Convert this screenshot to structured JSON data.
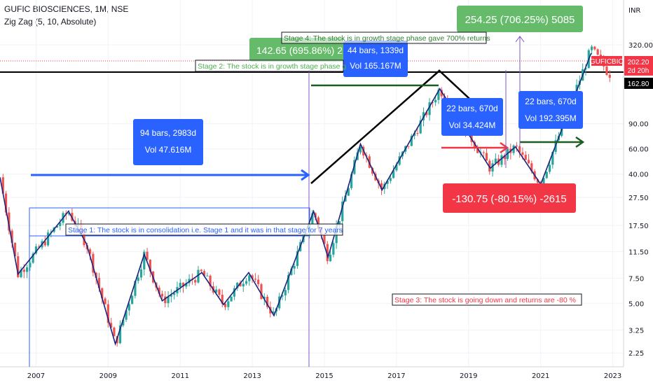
{
  "header": {
    "title": "GUFIC BIOSCIENCES, 1M, NSE",
    "indicator": "Zig Zag (5, 10, Absolute)",
    "currency": "INR"
  },
  "chart_data": {
    "type": "candlestick",
    "symbol": "GUFICBIO",
    "interval": "1M",
    "y_scale": "log",
    "ylim": [
      1.8,
      420
    ],
    "x_range": [
      2006.0,
      2023.3
    ],
    "y_ticks": [
      "320.00",
      "90.00",
      "60.00",
      "40.00",
      "27.50",
      "17.50",
      "11.50",
      "7.50",
      "5.00",
      "3.25",
      "2.25"
    ],
    "x_ticks": [
      "2007",
      "2009",
      "2011",
      "2013",
      "2015",
      "2017",
      "2019",
      "2021",
      "2023"
    ],
    "price_labels": [
      {
        "text": "GUFICBIO",
        "color": "#f23645"
      },
      {
        "text": "202.20",
        "color": "#f23645"
      },
      {
        "text": "2d 20h",
        "color": "#f23645"
      },
      {
        "text": "162.80",
        "color": "#000000"
      }
    ],
    "zigzag": [
      {
        "x": 2006.0,
        "y": 38
      },
      {
        "x": 2006.5,
        "y": 8
      },
      {
        "x": 2007.9,
        "y": 22
      },
      {
        "x": 2008.4,
        "y": 13
      },
      {
        "x": 2009.2,
        "y": 2.6
      },
      {
        "x": 2010.0,
        "y": 11
      },
      {
        "x": 2010.5,
        "y": 5.2
      },
      {
        "x": 2011.6,
        "y": 8.2
      },
      {
        "x": 2012.2,
        "y": 4.9
      },
      {
        "x": 2012.9,
        "y": 8.2
      },
      {
        "x": 2013.6,
        "y": 4.1
      },
      {
        "x": 2014.7,
        "y": 22
      },
      {
        "x": 2015.1,
        "y": 10.5
      },
      {
        "x": 2016.0,
        "y": 65
      },
      {
        "x": 2016.6,
        "y": 31
      },
      {
        "x": 2018.2,
        "y": 158
      },
      {
        "x": 2019.6,
        "y": 44
      },
      {
        "x": 2020.3,
        "y": 62
      },
      {
        "x": 2021.0,
        "y": 34
      },
      {
        "x": 2022.4,
        "y": 280
      }
    ],
    "candles": [
      {
        "x": 2006.0,
        "y": 38
      },
      {
        "x": 2006.5,
        "y": 8
      },
      {
        "x": 2007.9,
        "y": 22
      },
      {
        "x": 2008.4,
        "y": 13
      },
      {
        "x": 2009.2,
        "y": 2.6
      },
      {
        "x": 2010.0,
        "y": 11
      },
      {
        "x": 2010.5,
        "y": 5.2
      },
      {
        "x": 2011.6,
        "y": 8.2
      },
      {
        "x": 2012.2,
        "y": 4.9
      },
      {
        "x": 2012.9,
        "y": 8.2
      },
      {
        "x": 2013.6,
        "y": 4.1
      },
      {
        "x": 2014.7,
        "y": 22
      },
      {
        "x": 2015.1,
        "y": 10.5
      },
      {
        "x": 2016.0,
        "y": 65
      },
      {
        "x": 2016.6,
        "y": 31
      },
      {
        "x": 2018.2,
        "y": 158
      },
      {
        "x": 2019.6,
        "y": 44
      },
      {
        "x": 2020.3,
        "y": 62
      },
      {
        "x": 2021.0,
        "y": 34
      },
      {
        "x": 2022.4,
        "y": 300
      },
      {
        "x": 2022.9,
        "y": 202
      }
    ],
    "info_boxes": [
      {
        "lines": [
          "94 bars, 2983d",
          "Vol 47.616M"
        ],
        "color": "#2962ff"
      },
      {
        "lines": [
          "44 bars, 1339d",
          "Vol 165.167M"
        ],
        "color": "#2962ff"
      },
      {
        "lines": [
          "22 bars, 670d",
          "Vol 34.424M"
        ],
        "color": "#2962ff"
      },
      {
        "lines": [
          "22 bars, 670d",
          "Vol 192.395M"
        ],
        "color": "#2962ff"
      }
    ],
    "change_labels": [
      {
        "text": "142.65 (695.86%) 2",
        "color": "#66bb6a"
      },
      {
        "text": "254.25 (706.25%) 5085",
        "color": "#66bb6a"
      },
      {
        "text": "-130.75 (-80.15%) -2615",
        "color": "#f23645"
      }
    ],
    "annotations": [
      {
        "text": "Stage 1: The stock is in consolidation i.e. Stage 1 and it was in that stage for 7 years",
        "color": "#2962ff"
      },
      {
        "text": "Stage 2: The stock is in growth stage phase g",
        "color": "#4caf50"
      },
      {
        "text": "Stage 3: The stock is going down and returns are -80 %",
        "color": "#f23645"
      },
      {
        "text": "Stage 4: The stock is in growth stage phase gave 700% returns",
        "color": "#2e7d32"
      }
    ]
  }
}
